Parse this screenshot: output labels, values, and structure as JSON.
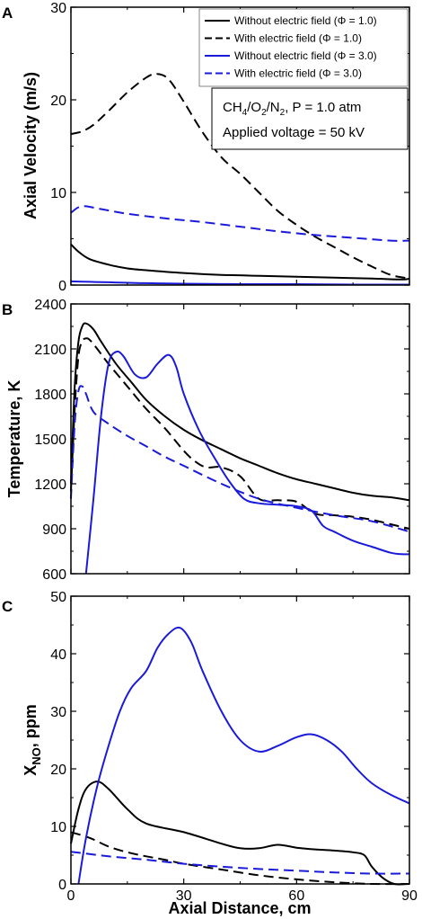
{
  "chart_data": [
    {
      "panel": "A",
      "type": "line",
      "ylabel": "Axial Velocity (m/s)",
      "xlim": [
        0,
        90
      ],
      "ylim": [
        0,
        30
      ],
      "xticks": [
        0,
        30,
        60,
        90
      ],
      "yticks": [
        0,
        10,
        20,
        30
      ],
      "legend": "top-right",
      "notes": [
        "Applied voltage = 50 kV"
      ],
      "series": [
        {
          "name": "Without electric field (Φ = 1.0)",
          "color": "#000000",
          "dash": "solid",
          "x": [
            0,
            2,
            5,
            10,
            15,
            20,
            30,
            40,
            50,
            60,
            70,
            80,
            88,
            90
          ],
          "y": [
            4.4,
            3.6,
            2.8,
            2.2,
            1.8,
            1.6,
            1.3,
            1.1,
            1.0,
            0.9,
            0.8,
            0.7,
            0.6,
            0.7
          ]
        },
        {
          "name": "With electric field (Φ = 1.0)",
          "color": "#000000",
          "dash": "dashed",
          "x": [
            0,
            3,
            6,
            10,
            15,
            20,
            23,
            26,
            30,
            35,
            40,
            45,
            50,
            55,
            60,
            65,
            70,
            75,
            80,
            85,
            90
          ],
          "y": [
            16.3,
            16.6,
            17.3,
            18.8,
            20.8,
            22.4,
            22.8,
            22.2,
            19.8,
            16.5,
            13.8,
            12.0,
            10.0,
            8.0,
            6.5,
            5.2,
            4.1,
            3.0,
            2.0,
            1.1,
            0.7
          ]
        },
        {
          "name": "Without electric field (Φ = 3.0)",
          "color": "#1a1adb",
          "dash": "solid",
          "x": [
            0,
            5,
            10,
            20,
            30,
            45,
            60,
            75,
            90
          ],
          "y": [
            0.4,
            0.35,
            0.3,
            0.2,
            0.15,
            0.1,
            0.1,
            0.05,
            0.05
          ]
        },
        {
          "name": "With electric field (Φ = 3.0)",
          "color": "#1a1adb",
          "dash": "dashed",
          "x": [
            0,
            2,
            4,
            8,
            15,
            25,
            35,
            45,
            55,
            65,
            75,
            85,
            90
          ],
          "y": [
            7.8,
            8.4,
            8.5,
            8.2,
            7.7,
            7.2,
            6.8,
            6.3,
            5.8,
            5.4,
            5.1,
            4.8,
            4.8
          ]
        }
      ]
    },
    {
      "panel": "B",
      "type": "line",
      "ylabel": "Temperature, K",
      "xlim": [
        0,
        90
      ],
      "ylim": [
        600,
        2400
      ],
      "xticks": [
        0,
        30,
        60,
        90
      ],
      "yticks": [
        600,
        900,
        1200,
        1500,
        1800,
        2100,
        2400
      ],
      "series": [
        {
          "name": "Without electric field (Φ = 1.0)",
          "color": "#000000",
          "dash": "solid",
          "x": [
            0,
            1,
            2,
            3,
            4,
            6,
            8,
            12,
            16,
            20,
            25,
            30,
            35,
            40,
            45,
            50,
            55,
            60,
            65,
            70,
            75,
            80,
            85,
            90
          ],
          "y": [
            1200,
            1850,
            2150,
            2250,
            2270,
            2230,
            2150,
            2000,
            1880,
            1760,
            1650,
            1560,
            1490,
            1430,
            1370,
            1320,
            1270,
            1230,
            1200,
            1170,
            1140,
            1120,
            1110,
            1090
          ]
        },
        {
          "name": "With electric field (Φ = 1.0)",
          "color": "#000000",
          "dash": "dashed",
          "x": [
            0,
            1,
            2,
            3,
            4,
            5,
            7,
            10,
            15,
            20,
            25,
            30,
            33,
            36,
            40,
            45,
            50,
            55,
            60,
            65,
            70,
            75,
            80,
            85,
            90
          ],
          "y": [
            1150,
            1700,
            2050,
            2150,
            2170,
            2160,
            2100,
            2000,
            1850,
            1700,
            1570,
            1420,
            1350,
            1310,
            1310,
            1250,
            1100,
            1090,
            1080,
            1000,
            990,
            980,
            960,
            930,
            900
          ]
        },
        {
          "name": "Without electric field (Φ = 3.0)",
          "color": "#1a1adb",
          "dash": "solid",
          "x": [
            4,
            6,
            8,
            10,
            12,
            14,
            17,
            20,
            23,
            26,
            28,
            30,
            34,
            38,
            42,
            46,
            50,
            55,
            60,
            64,
            67,
            70,
            75,
            80,
            85,
            88,
            90
          ],
          "y": [
            600,
            1100,
            1650,
            2000,
            2080,
            2050,
            1930,
            1910,
            2000,
            2060,
            1980,
            1800,
            1560,
            1380,
            1220,
            1100,
            1070,
            1060,
            1050,
            1020,
            920,
            880,
            820,
            780,
            740,
            730,
            730
          ]
        },
        {
          "name": "With electric field (Φ = 3.0)",
          "color": "#1a1adb",
          "dash": "dashed",
          "x": [
            0,
            1,
            2,
            3,
            4,
            6,
            10,
            15,
            20,
            25,
            30,
            40,
            50,
            60,
            70,
            80,
            90
          ],
          "y": [
            1100,
            1600,
            1820,
            1850,
            1800,
            1680,
            1600,
            1520,
            1450,
            1380,
            1320,
            1200,
            1100,
            1040,
            990,
            950,
            880
          ]
        }
      ]
    },
    {
      "panel": "C",
      "type": "line",
      "xlabel": "Axial Distance, cm",
      "xlim": [
        0,
        90
      ],
      "ylim": [
        0,
        50
      ],
      "xticks": [
        0,
        30,
        60,
        90
      ],
      "yticks": [
        0,
        10,
        20,
        30,
        40,
        50
      ],
      "series": [
        {
          "name": "Without electric field (Φ = 1.0)",
          "color": "#000000",
          "dash": "solid",
          "x": [
            0,
            2,
            4,
            7,
            10,
            15,
            20,
            30,
            40,
            45,
            50,
            55,
            60,
            65,
            70,
            75,
            78,
            80,
            83,
            86,
            90
          ],
          "y": [
            7,
            13,
            16.5,
            17.8,
            16.5,
            13,
            10.5,
            9,
            7,
            6.2,
            6.2,
            6.8,
            6.3,
            6,
            5.8,
            5.5,
            5,
            3,
            1,
            0,
            0
          ]
        },
        {
          "name": "With electric field (Φ = 1.0)",
          "color": "#000000",
          "dash": "dashed",
          "x": [
            0,
            5,
            10,
            15,
            20,
            25,
            30,
            40,
            50,
            60,
            70,
            80,
            90
          ],
          "y": [
            9,
            8,
            6.5,
            5.5,
            4.8,
            4.2,
            3.5,
            2.5,
            1.5,
            0.8,
            0.3,
            0,
            0
          ]
        },
        {
          "name": "Without electric field (Φ = 3.0)",
          "color": "#1a1adb",
          "dash": "solid",
          "x": [
            2,
            4,
            7,
            10,
            13,
            16,
            20,
            23,
            26,
            29,
            32,
            35,
            40,
            45,
            50,
            55,
            60,
            64,
            68,
            72,
            76,
            80,
            85,
            90
          ],
          "y": [
            0,
            8,
            17,
            24,
            30,
            34,
            37,
            41,
            43.5,
            44.5,
            42,
            37,
            30,
            25,
            23,
            24,
            25.5,
            26,
            25,
            23,
            20,
            17.5,
            15.5,
            14
          ]
        },
        {
          "name": "With electric field (Φ = 3.0)",
          "color": "#1a1adb",
          "dash": "dashed",
          "x": [
            0,
            10,
            20,
            30,
            40,
            50,
            60,
            70,
            80,
            90
          ],
          "y": [
            5.6,
            4.8,
            4.2,
            3.5,
            3.0,
            2.6,
            2.3,
            2.0,
            1.8,
            1.8
          ]
        }
      ]
    }
  ],
  "legend_entries": [
    {
      "label": "Without electric field (Φ = 1.0)",
      "color": "#000000",
      "dash": "solid"
    },
    {
      "label": "With electric field (Φ = 1.0)",
      "color": "#000000",
      "dash": "dashed"
    },
    {
      "label": "Without electric field (Φ = 3.0)",
      "color": "#1a1adb",
      "dash": "solid"
    },
    {
      "label": "With electric field (Φ = 3.0)",
      "color": "#1a1adb",
      "dash": "dashed"
    }
  ],
  "annotation": {
    "mixture_prefix": "CH",
    "sub4": "4",
    "mid": "/O",
    "sub2a": "2",
    "mid2": "/N",
    "sub2b": "2",
    "pressure": ", P = 1.0 atm",
    "voltage": "Applied voltage = 50 kV"
  },
  "panel_labels": [
    "A",
    "B",
    "C"
  ],
  "axis_labels": {
    "a_y": "Axial Velocity (m/s)",
    "b_y": "Temperature, K",
    "c_y_main": "X",
    "c_y_sub": "NO",
    "c_y_rest": ", ppm",
    "x": "Axial Distance, cm"
  }
}
